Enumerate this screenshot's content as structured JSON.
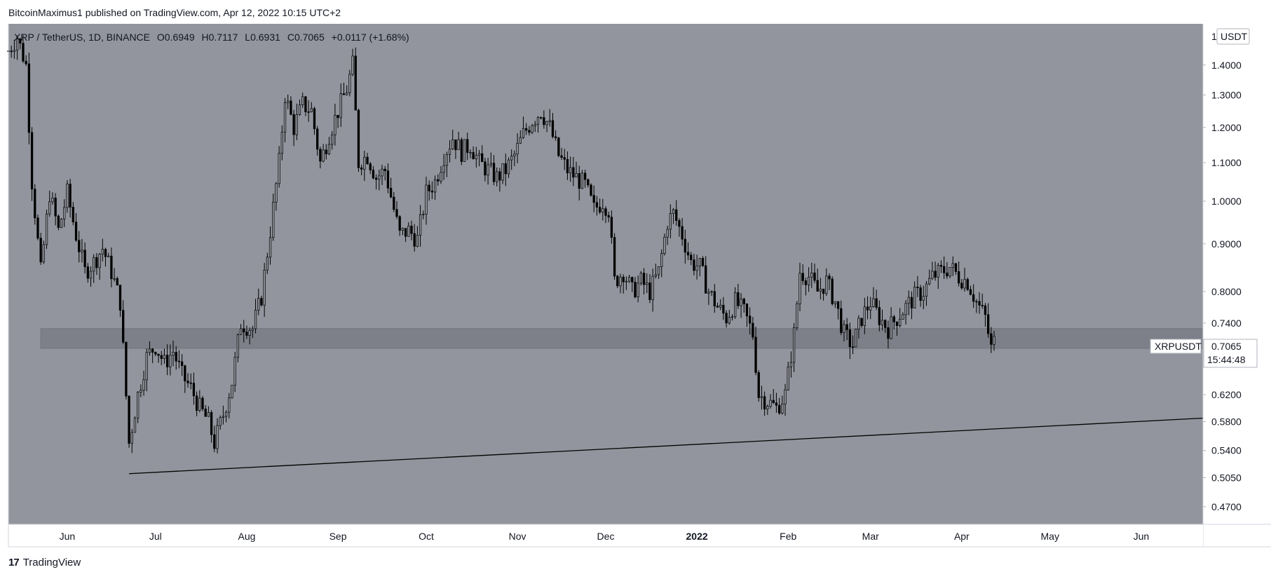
{
  "publish_line": "BitcoinMaximus1 published on TradingView.com, Apr 12, 2022 10:15 UTC+2",
  "header": {
    "symbol": "XRP / TetherUS, 1D, BINANCE",
    "o_label": "O",
    "o_value": "0.6949",
    "h_label": "H",
    "h_value": "0.7117",
    "l_label": "L",
    "l_value": "0.6931",
    "c_label": "C",
    "c_value": "0.7065",
    "change": "+0.0117 (+1.68%)"
  },
  "price_axis": {
    "currency": "USDT",
    "top_marker": "1",
    "ticks": [
      "1.4000",
      "1.3000",
      "1.2000",
      "1.1000",
      "1.0000",
      "0.9000",
      "0.8000",
      "0.7400",
      "0.6200",
      "0.5800",
      "0.5400",
      "0.5050",
      "0.4700"
    ]
  },
  "last_price": {
    "symbol": "XRPUSDT",
    "price": "0.7065",
    "countdown": "15:44:48"
  },
  "time_axis": {
    "labels": [
      "Jun",
      "Jul",
      "Aug",
      "Sep",
      "Oct",
      "Nov",
      "Dec",
      "2022",
      "Feb",
      "Mar",
      "Apr",
      "May",
      "Jun"
    ],
    "bold_label": "2022"
  },
  "footer": {
    "logo": "17",
    "brand": "TradingView"
  },
  "colors": {
    "background": "#92959d",
    "candle": "#000000",
    "zone": "#7d8088",
    "line": "#000000",
    "axis_bg": "#ffffff"
  },
  "chart_data": {
    "type": "candlestick",
    "title": "XRP / TetherUS, 1D, BINANCE",
    "y_scale": "log",
    "ylim": [
      0.45,
      1.55
    ],
    "x_range": [
      "2021-05-12",
      "2022-06-22"
    ],
    "support_zone": [
      0.695,
      0.73
    ],
    "trendline": [
      {
        "date": "2021-06-22",
        "price": 0.51
      },
      {
        "date": "2022-06-22",
        "price": 0.585
      }
    ],
    "last_close": 0.7065,
    "series": [
      {
        "values": [
          [
            "2021-05-12",
            1.45
          ],
          [
            "2021-05-15",
            1.5
          ],
          [
            "2021-05-18",
            1.4
          ],
          [
            "2021-05-20",
            1.05
          ],
          [
            "2021-05-23",
            0.84
          ],
          [
            "2021-05-26",
            1.02
          ],
          [
            "2021-05-29",
            0.93
          ],
          [
            "2021-06-01",
            1.02
          ],
          [
            "2021-06-04",
            0.92
          ],
          [
            "2021-06-07",
            0.84
          ],
          [
            "2021-06-10",
            0.86
          ],
          [
            "2021-06-13",
            0.89
          ],
          [
            "2021-06-16",
            0.84
          ],
          [
            "2021-06-19",
            0.78
          ],
          [
            "2021-06-22",
            0.55
          ],
          [
            "2021-06-25",
            0.62
          ],
          [
            "2021-06-28",
            0.68
          ],
          [
            "2021-07-01",
            0.7
          ],
          [
            "2021-07-04",
            0.67
          ],
          [
            "2021-07-07",
            0.69
          ],
          [
            "2021-07-10",
            0.65
          ],
          [
            "2021-07-13",
            0.63
          ],
          [
            "2021-07-16",
            0.6
          ],
          [
            "2021-07-19",
            0.58
          ],
          [
            "2021-07-21",
            0.55
          ],
          [
            "2021-07-24",
            0.59
          ],
          [
            "2021-07-27",
            0.64
          ],
          [
            "2021-07-30",
            0.74
          ],
          [
            "2021-08-03",
            0.73
          ],
          [
            "2021-08-06",
            0.79
          ],
          [
            "2021-08-09",
            0.93
          ],
          [
            "2021-08-12",
            1.1
          ],
          [
            "2021-08-14",
            1.3
          ],
          [
            "2021-08-17",
            1.2
          ],
          [
            "2021-08-20",
            1.27
          ],
          [
            "2021-08-23",
            1.25
          ],
          [
            "2021-08-26",
            1.1
          ],
          [
            "2021-08-29",
            1.18
          ],
          [
            "2021-09-01",
            1.25
          ],
          [
            "2021-09-04",
            1.32
          ],
          [
            "2021-09-06",
            1.4
          ],
          [
            "2021-09-08",
            1.1
          ],
          [
            "2021-09-11",
            1.12
          ],
          [
            "2021-09-14",
            1.06
          ],
          [
            "2021-09-17",
            1.08
          ],
          [
            "2021-09-20",
            0.98
          ],
          [
            "2021-09-22",
            0.92
          ],
          [
            "2021-09-25",
            0.93
          ],
          [
            "2021-09-28",
            0.91
          ],
          [
            "2021-10-01",
            1.02
          ],
          [
            "2021-10-04",
            1.05
          ],
          [
            "2021-10-07",
            1.12
          ],
          [
            "2021-10-10",
            1.17
          ],
          [
            "2021-10-13",
            1.13
          ],
          [
            "2021-10-16",
            1.15
          ],
          [
            "2021-10-19",
            1.1
          ],
          [
            "2021-10-22",
            1.08
          ],
          [
            "2021-10-25",
            1.06
          ],
          [
            "2021-10-28",
            1.08
          ],
          [
            "2021-10-31",
            1.12
          ],
          [
            "2021-11-03",
            1.18
          ],
          [
            "2021-11-06",
            1.22
          ],
          [
            "2021-11-09",
            1.25
          ],
          [
            "2021-11-12",
            1.2
          ],
          [
            "2021-11-15",
            1.12
          ],
          [
            "2021-11-18",
            1.08
          ],
          [
            "2021-11-21",
            1.06
          ],
          [
            "2021-11-24",
            1.04
          ],
          [
            "2021-11-27",
            0.98
          ],
          [
            "2021-11-30",
            1.0
          ],
          [
            "2021-12-02",
            0.98
          ],
          [
            "2021-12-04",
            0.82
          ],
          [
            "2021-12-07",
            0.84
          ],
          [
            "2021-12-10",
            0.8
          ],
          [
            "2021-12-13",
            0.82
          ],
          [
            "2021-12-16",
            0.8
          ],
          [
            "2021-12-19",
            0.84
          ],
          [
            "2021-12-22",
            0.95
          ],
          [
            "2021-12-24",
            0.97
          ],
          [
            "2021-12-27",
            0.92
          ],
          [
            "2021-12-30",
            0.86
          ],
          [
            "2022-01-02",
            0.85
          ],
          [
            "2022-01-05",
            0.8
          ],
          [
            "2022-01-08",
            0.77
          ],
          [
            "2022-01-11",
            0.75
          ],
          [
            "2022-01-14",
            0.78
          ],
          [
            "2022-01-17",
            0.76
          ],
          [
            "2022-01-20",
            0.72
          ],
          [
            "2022-01-22",
            0.62
          ],
          [
            "2022-01-25",
            0.61
          ],
          [
            "2022-01-28",
            0.6
          ],
          [
            "2022-01-31",
            0.62
          ],
          [
            "2022-02-03",
            0.72
          ],
          [
            "2022-02-05",
            0.84
          ],
          [
            "2022-02-08",
            0.83
          ],
          [
            "2022-02-11",
            0.8
          ],
          [
            "2022-02-14",
            0.82
          ],
          [
            "2022-02-17",
            0.78
          ],
          [
            "2022-02-20",
            0.72
          ],
          [
            "2022-02-23",
            0.7
          ],
          [
            "2022-02-26",
            0.75
          ],
          [
            "2022-03-01",
            0.78
          ],
          [
            "2022-03-04",
            0.75
          ],
          [
            "2022-03-07",
            0.73
          ],
          [
            "2022-03-10",
            0.75
          ],
          [
            "2022-03-13",
            0.77
          ],
          [
            "2022-03-16",
            0.79
          ],
          [
            "2022-03-19",
            0.8
          ],
          [
            "2022-03-22",
            0.83
          ],
          [
            "2022-03-25",
            0.84
          ],
          [
            "2022-03-28",
            0.85
          ],
          [
            "2022-03-31",
            0.83
          ],
          [
            "2022-04-03",
            0.82
          ],
          [
            "2022-04-06",
            0.78
          ],
          [
            "2022-04-09",
            0.75
          ],
          [
            "2022-04-11",
            0.6949
          ],
          [
            "2022-04-12",
            0.7065
          ]
        ]
      }
    ]
  }
}
